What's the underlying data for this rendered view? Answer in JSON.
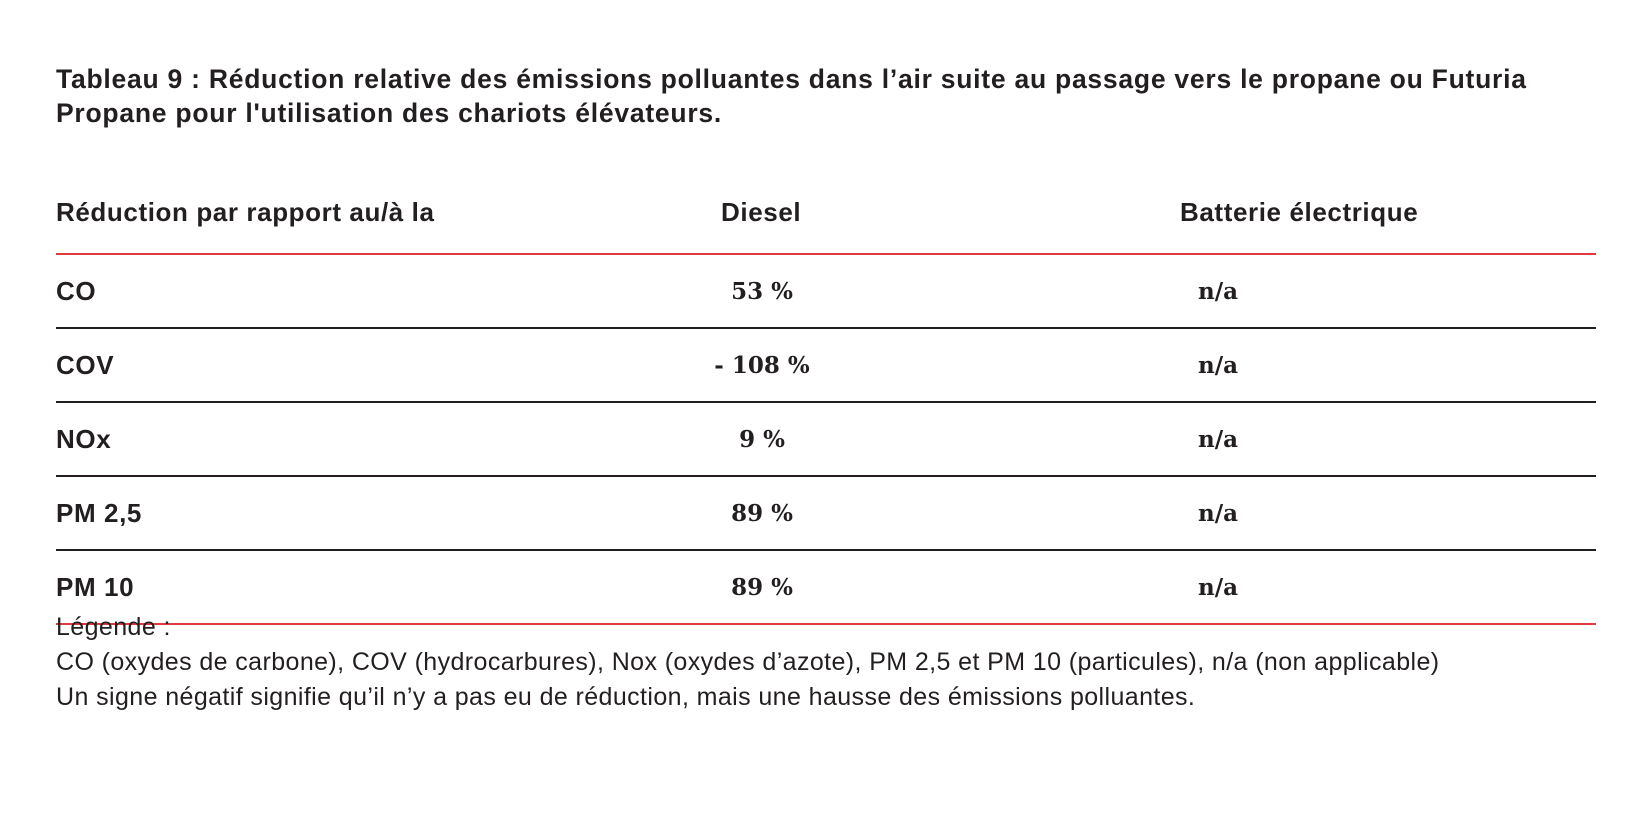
{
  "title": "Tableau 9 : Réduction relative des émissions polluantes dans l’air suite au passage vers le propane ou Futuria Propane pour l'utilisation des chariots élévateurs.",
  "table": {
    "headers": [
      "Réduction par rapport au/à la",
      "Diesel",
      "Batterie électrique"
    ],
    "rows": [
      {
        "pollutant": "CO",
        "diesel": "53 %",
        "battery": "n/a"
      },
      {
        "pollutant": "COV",
        "diesel": "- 108 %",
        "battery": "n/a"
      },
      {
        "pollutant": "NOx",
        "diesel": "9 %",
        "battery": "n/a"
      },
      {
        "pollutant": "PM 2,5",
        "diesel": "89 %",
        "battery": "n/a"
      },
      {
        "pollutant": "PM 10",
        "diesel": "89 %",
        "battery": "n/a"
      }
    ]
  },
  "legend": {
    "heading": "Légende :",
    "line1": "CO (oxydes de carbone), COV (hydrocarbures), Nox (oxydes d’azote), PM 2,5 et PM 10 (particules), n/a (non applicable)",
    "line2": "Un signe négatif signifie qu’il n’y a pas eu de réduction, mais une hausse des émissions polluantes."
  },
  "colors": {
    "accent_rule": "#e03a3e",
    "text": "#231f20"
  }
}
